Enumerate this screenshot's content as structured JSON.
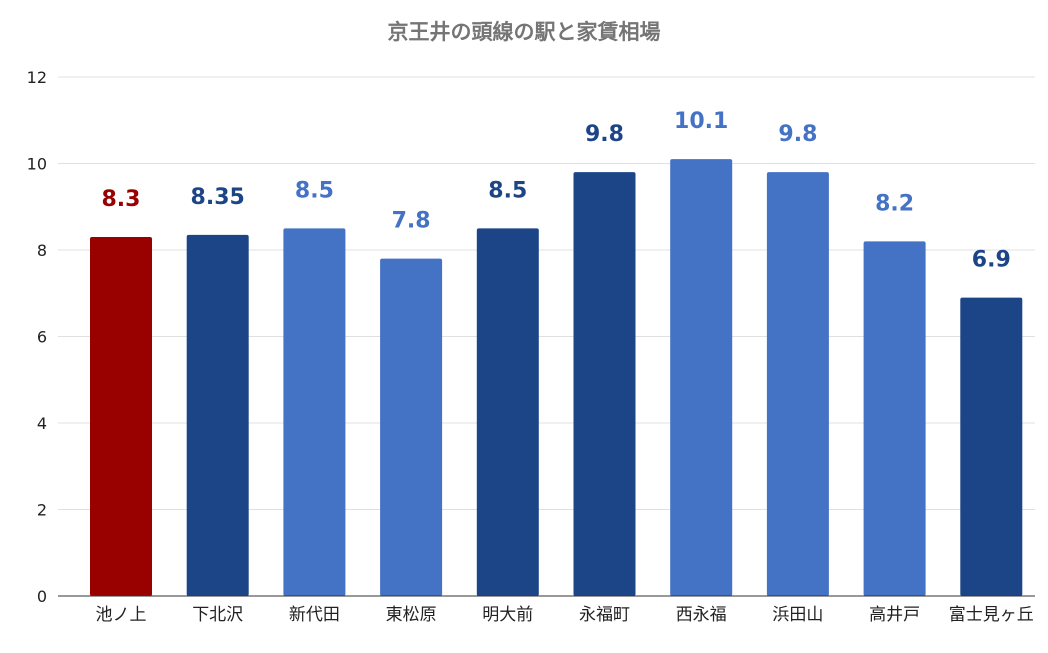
{
  "chart_data": {
    "type": "bar",
    "title": "京王井の頭線の駅と家賃相場",
    "categories": [
      "池ノ上",
      "下北沢",
      "新代田",
      "東松原",
      "明大前",
      "永福町",
      "西永福",
      "浜田山",
      "高井戸",
      "富士見ヶ丘"
    ],
    "values": [
      8.3,
      8.35,
      8.5,
      7.8,
      8.5,
      9.8,
      10.1,
      9.8,
      8.2,
      6.9
    ],
    "data_labels": [
      "8.3",
      "8.35",
      "8.5",
      "7.8",
      "8.5",
      "9.8",
      "10.1",
      "9.8",
      "8.2",
      "6.9"
    ],
    "bar_colors": [
      "#990000",
      "#1c4587",
      "#4472c4",
      "#4472c4",
      "#1c4587",
      "#1c4587",
      "#4472c4",
      "#4472c4",
      "#4472c4",
      "#1c4587"
    ],
    "ylim": [
      0,
      12
    ],
    "yticks": [
      "0",
      "2",
      "4",
      "6",
      "8",
      "10",
      "12"
    ],
    "xlabel": "",
    "ylabel": "",
    "grid": true,
    "legend": "none"
  },
  "colors": {
    "title": "#757575",
    "axis_text": "#222222",
    "grid": "#e0e0e0"
  }
}
